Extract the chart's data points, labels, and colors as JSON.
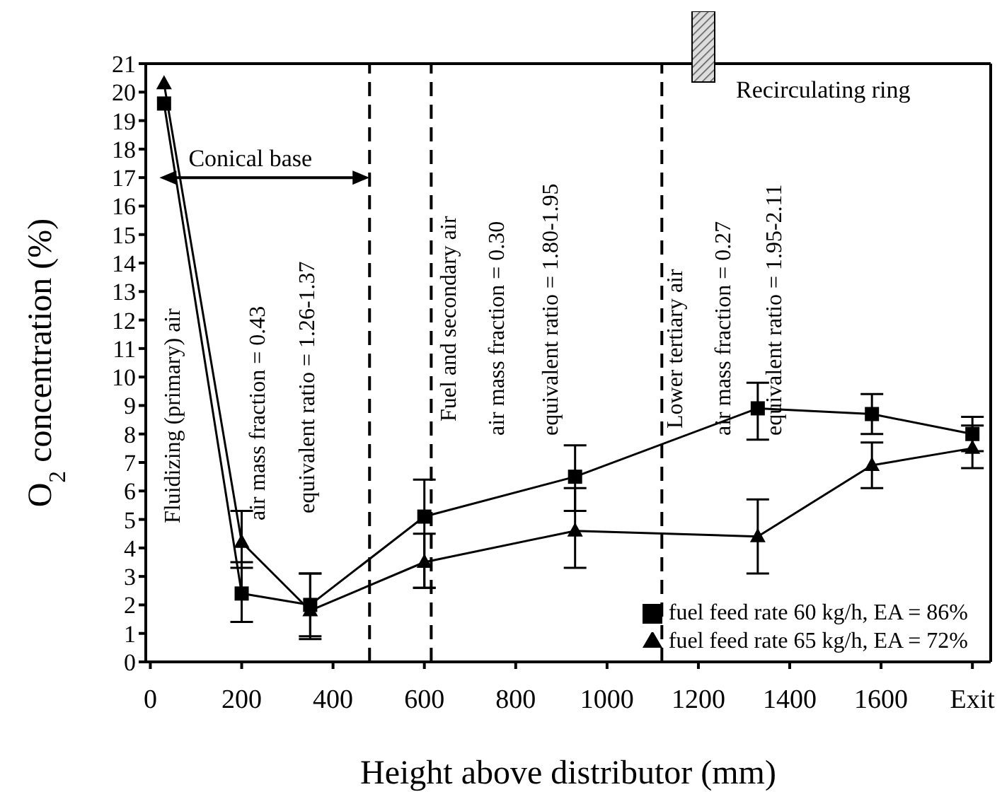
{
  "chart_data": {
    "type": "line",
    "xlabel": "Height above distributor (mm)",
    "ylabel": "O$_{2}$ concentration (%)",
    "xlim": [
      -10,
      1840
    ],
    "xticks": [
      0,
      200,
      400,
      600,
      800,
      1000,
      1200,
      1400,
      1600,
      {
        "value": 1800,
        "label": "Exit"
      }
    ],
    "ylim": [
      0,
      21
    ],
    "yticks": [
      0,
      1,
      2,
      3,
      4,
      5,
      6,
      7,
      8,
      9,
      10,
      11,
      12,
      13,
      14,
      15,
      16,
      17,
      18,
      19,
      20,
      21
    ],
    "x": [
      30,
      200,
      350,
      600,
      930,
      1330,
      1580,
      1800
    ],
    "series": [
      {
        "name": "fuel feed rate 60 kg/h, EA = 86%",
        "color": "#000000",
        "marker": "square",
        "line_style": "solid",
        "values": [
          19.6,
          2.4,
          2.0,
          5.1,
          6.5,
          8.9,
          8.7,
          8.0
        ],
        "errors": [
          null,
          [
            1.4,
            3.5
          ],
          [
            0.8,
            3.1
          ],
          [
            2.6,
            6.4
          ],
          [
            5.3,
            7.6
          ],
          [
            7.8,
            9.8
          ],
          [
            8.0,
            9.4
          ],
          [
            7.4,
            8.6
          ]
        ]
      },
      {
        "name": "fuel feed rate 65 kg/h, EA = 72%",
        "color": "#000000",
        "marker": "triangle",
        "line_style": "solid",
        "values": [
          20.3,
          4.2,
          1.8,
          3.5,
          4.6,
          4.4,
          6.9,
          7.5
        ],
        "errors": [
          null,
          [
            3.3,
            5.3
          ],
          [
            0.9,
            3.1
          ],
          [
            2.6,
            4.5
          ],
          [
            3.3,
            6.1
          ],
          [
            3.1,
            5.7
          ],
          [
            6.1,
            7.7
          ],
          [
            6.8,
            8.3
          ]
        ]
      }
    ],
    "ref_lines": [
      {
        "axis": "x",
        "value": 480,
        "line_style": "dashed",
        "color": "#000000"
      },
      {
        "axis": "x",
        "value": 615,
        "line_style": "dashed",
        "color": "#000000"
      },
      {
        "axis": "x",
        "value": 1120,
        "line_style": "dashed",
        "color": "#000000"
      }
    ],
    "annotations": [
      "Conical base",
      "Fluidizing (primary) air",
      "air mass fraction = 0.43",
      "equivalent ratio = 1.26-1.37",
      "Fuel and secondary air",
      "air mass fraction = 0.30",
      "equivalent ratio = 1.80-1.95",
      "Lower tertiary air",
      "air mass fraction = 0.27",
      "equivalent ratio = 1.95-2.11",
      "Recirculating ring"
    ],
    "legend": "bottom right",
    "grid": false
  }
}
